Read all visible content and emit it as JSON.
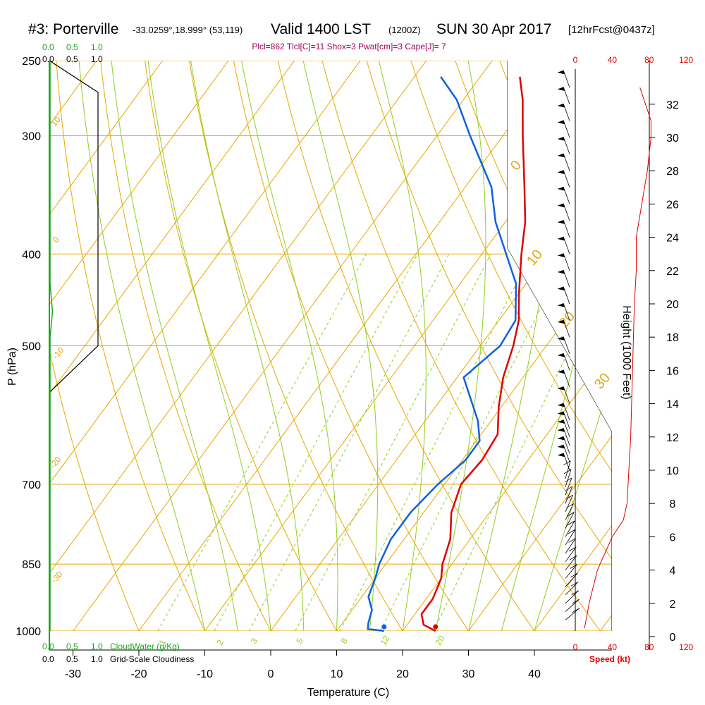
{
  "header": {
    "station": "#3: Porterville",
    "coords": "-33.0259°,18.999° (53,119)",
    "valid": "Valid 1400 LST",
    "valid_z": "(1200Z)",
    "date": "SUN 30 Apr 2017",
    "forecast": "[12hrFcst@0437z]"
  },
  "params_text": "Plcl=862 Tlcl[C]=11 Shox=3 Pwat[cm]=3 Cape[J]= 7",
  "colors": {
    "isotherm": "#e8a800",
    "dry_adiabat": "#e8a800",
    "moist_adiabat": "#8fcf1f",
    "mixing_ratio": "#8fcf1f",
    "temperature": "#e00000",
    "dewpoint": "#1060e0",
    "cloud": "#1aa81a",
    "speed": "#e00000"
  },
  "chart_data": {
    "type": "skew-t",
    "ylabel": "P (hPa)",
    "xlabel": "Temperature (C)",
    "right_label": "Height (1000 Feet)",
    "pressure_ticks": [
      250,
      300,
      400,
      500,
      700,
      850,
      1000
    ],
    "temp_ticks": [
      -30,
      -20,
      -10,
      0,
      10,
      20,
      30,
      40
    ],
    "height_ticks": [
      0,
      2,
      4,
      6,
      8,
      10,
      12,
      14,
      16,
      18,
      20,
      22,
      24,
      26,
      28,
      30,
      32
    ],
    "speed_ticks": [
      0,
      40,
      80,
      120
    ],
    "speed_label": "Speed (kt)",
    "cloud_water_label": "CloudWater (g/Kg)",
    "cloudiness_label": "Grid-Scale Cloudiness",
    "cloud_water_ticks": [
      "0.0",
      "0.5",
      "1.0"
    ],
    "cloudiness_ticks": [
      "0.0",
      "0.5",
      "1.0"
    ],
    "dry_adiabat_labels": [
      "10",
      "0",
      "-10",
      "-20",
      "-30",
      "0",
      "10",
      "20",
      "30"
    ],
    "mixing_ratio_labels": [
      "1",
      "2",
      "3",
      "5",
      "8",
      "12",
      "20"
    ],
    "temperature": [
      {
        "p": 1000,
        "t": 25.0
      },
      {
        "p": 985,
        "t": 22.5
      },
      {
        "p": 960,
        "t": 21.0
      },
      {
        "p": 925,
        "t": 21.0
      },
      {
        "p": 880,
        "t": 20.0
      },
      {
        "p": 850,
        "t": 18.6
      },
      {
        "p": 800,
        "t": 17.0
      },
      {
        "p": 750,
        "t": 14.2
      },
      {
        "p": 700,
        "t": 12.5
      },
      {
        "p": 660,
        "t": 13.0
      },
      {
        "p": 620,
        "t": 12.5
      },
      {
        "p": 580,
        "t": 9.6
      },
      {
        "p": 540,
        "t": 7.0
      },
      {
        "p": 500,
        "t": 5.0
      },
      {
        "p": 470,
        "t": 3.0
      },
      {
        "p": 440,
        "t": 0.0
      },
      {
        "p": 400,
        "t": -4.0
      },
      {
        "p": 370,
        "t": -7.0
      },
      {
        "p": 340,
        "t": -11.0
      },
      {
        "p": 300,
        "t": -17.0
      },
      {
        "p": 275,
        "t": -21.0
      },
      {
        "p": 260,
        "t": -24.0
      }
    ],
    "dewpoint": [
      {
        "p": 1000,
        "t": 17.2
      },
      {
        "p": 995,
        "t": 14.5
      },
      {
        "p": 980,
        "t": 13.9
      },
      {
        "p": 950,
        "t": 13.0
      },
      {
        "p": 920,
        "t": 11.0
      },
      {
        "p": 880,
        "t": 10.0
      },
      {
        "p": 850,
        "t": 9.0
      },
      {
        "p": 800,
        "t": 8.0
      },
      {
        "p": 750,
        "t": 8.0
      },
      {
        "p": 700,
        "t": 9.0
      },
      {
        "p": 660,
        "t": 10.5
      },
      {
        "p": 630,
        "t": 10.5
      },
      {
        "p": 600,
        "t": 8.0
      },
      {
        "p": 540,
        "t": 1.0
      },
      {
        "p": 500,
        "t": 3.0
      },
      {
        "p": 470,
        "t": 2.5
      },
      {
        "p": 430,
        "t": -1.5
      },
      {
        "p": 390,
        "t": -8.0
      },
      {
        "p": 370,
        "t": -11.5
      },
      {
        "p": 340,
        "t": -16.0
      },
      {
        "p": 300,
        "t": -25.0
      },
      {
        "p": 275,
        "t": -31.0
      },
      {
        "p": 260,
        "t": -36.0
      }
    ],
    "surface_temperature": 25.0,
    "surface_dewpoint": 17.2,
    "cloudiness_profile": [
      {
        "p": 250,
        "v": 0.0
      },
      {
        "p": 270,
        "v": 1.0
      },
      {
        "p": 500,
        "v": 1.0
      },
      {
        "p": 560,
        "v": 0.0
      },
      {
        "p": 1000,
        "v": 0.0
      }
    ],
    "cloud_water_profile": [
      {
        "p": 250,
        "v": 0.0
      },
      {
        "p": 430,
        "v": 0.0
      },
      {
        "p": 460,
        "v": 0.05
      },
      {
        "p": 490,
        "v": 0.0
      },
      {
        "p": 1000,
        "v": 0.0
      }
    ],
    "wind_speed_profile": [
      {
        "h": 0.5,
        "s": 10
      },
      {
        "h": 2,
        "s": 15
      },
      {
        "h": 4,
        "s": 24
      },
      {
        "h": 6,
        "s": 40
      },
      {
        "h": 7,
        "s": 52
      },
      {
        "h": 8,
        "s": 56
      },
      {
        "h": 12,
        "s": 60
      },
      {
        "h": 16,
        "s": 62
      },
      {
        "h": 20,
        "s": 64
      },
      {
        "h": 22,
        "s": 66
      },
      {
        "h": 24,
        "s": 66
      },
      {
        "h": 26,
        "s": 72
      },
      {
        "h": 28,
        "s": 78
      },
      {
        "h": 30,
        "s": 82
      },
      {
        "h": 31,
        "s": 82
      },
      {
        "h": 32,
        "s": 76
      },
      {
        "h": 33,
        "s": 70
      }
    ],
    "wind_barb_heights": [
      1,
      1.5,
      2,
      2.5,
      3,
      3.5,
      4,
      4.5,
      5,
      5.5,
      6,
      6.5,
      7,
      7.5,
      8,
      8.5,
      9,
      9.5,
      10,
      10.5,
      11,
      11.5,
      12,
      12.5,
      13,
      14,
      15,
      16,
      17,
      18,
      19,
      20,
      21,
      22,
      23,
      24,
      25,
      26,
      27,
      28,
      29,
      30,
      31,
      32,
      33
    ]
  }
}
